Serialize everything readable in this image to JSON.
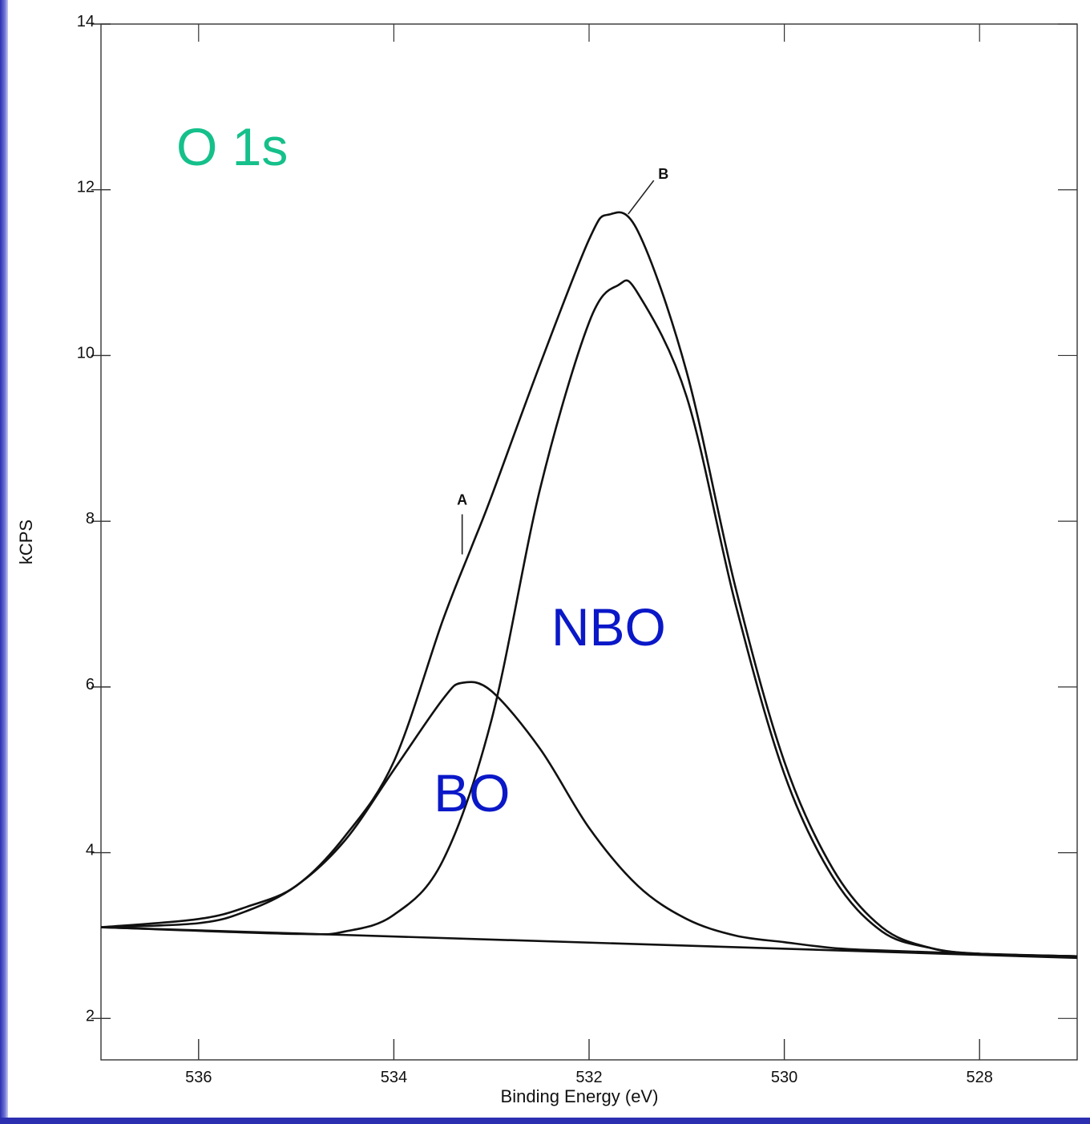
{
  "chart_data": {
    "type": "line",
    "title": "O 1s",
    "xlabel": "Binding Energy (eV)",
    "ylabel": "kCPS",
    "xlim": [
      537,
      527
    ],
    "ylim": [
      1.5,
      14
    ],
    "x_reversed": true,
    "xticks": [
      536,
      534,
      532,
      530,
      528
    ],
    "yticks": [
      2,
      4,
      6,
      8,
      10,
      12,
      14
    ],
    "grid": false,
    "series": [
      {
        "name": "",
        "role": "envelope",
        "x": [
          537,
          536,
          535.5,
          535,
          534.5,
          534,
          533.5,
          533.2,
          533,
          532.5,
          532,
          531.8,
          531.5,
          531,
          530.5,
          530,
          529.5,
          529,
          528.5,
          528,
          527
        ],
        "y": [
          3.1,
          3.2,
          3.35,
          3.6,
          4.2,
          5.1,
          6.8,
          7.7,
          8.3,
          9.9,
          11.4,
          11.7,
          11.5,
          9.8,
          7.2,
          5.1,
          3.8,
          3.1,
          2.85,
          2.78,
          2.75
        ]
      },
      {
        "name": "BO",
        "x": [
          537,
          536,
          535.5,
          535,
          534.5,
          534,
          533.5,
          533.3,
          533,
          532.5,
          532,
          531.5,
          531,
          530.5,
          530,
          529.5,
          529,
          528,
          527
        ],
        "y": [
          3.1,
          3.15,
          3.3,
          3.6,
          4.15,
          5.0,
          5.85,
          6.05,
          5.95,
          5.25,
          4.3,
          3.6,
          3.2,
          3.0,
          2.92,
          2.85,
          2.82,
          2.78,
          2.75
        ]
      },
      {
        "name": "NBO",
        "x": [
          537,
          535,
          534.5,
          534,
          533.5,
          533,
          532.5,
          532,
          531.7,
          531.5,
          531,
          530.5,
          530,
          529.5,
          529,
          528.5,
          528,
          527
        ],
        "y": [
          3.1,
          3.02,
          3.05,
          3.25,
          3.9,
          5.6,
          8.4,
          10.4,
          10.85,
          10.75,
          9.5,
          7.0,
          4.95,
          3.7,
          3.05,
          2.85,
          2.78,
          2.75
        ]
      },
      {
        "name": "",
        "role": "background",
        "x": [
          537,
          527
        ],
        "y": [
          3.1,
          2.73
        ]
      }
    ],
    "annotations": [
      {
        "text": "A",
        "x": 533.3,
        "y": 7.6
      },
      {
        "text": "B",
        "x": 531.6,
        "y": 11.9
      },
      {
        "text": "NBO",
        "x": 531.8,
        "y": 6.5
      },
      {
        "text": "BO",
        "x": 533.2,
        "y": 4.5
      }
    ]
  },
  "colors": {
    "title": "#15c08a",
    "component_labels": "#0a18c8",
    "frame": "#2b2fb0"
  }
}
